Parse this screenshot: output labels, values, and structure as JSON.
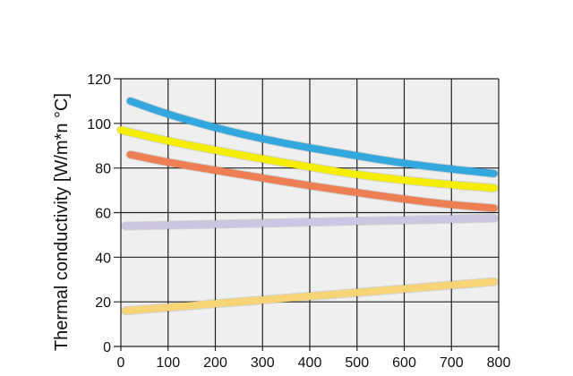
{
  "chart_data": {
    "type": "line",
    "title": "",
    "xlabel": "",
    "ylabel": "Thermal conductivity [W/m*n °C]",
    "xlim": [
      0,
      800
    ],
    "ylim": [
      0,
      120
    ],
    "xticks": [
      "0",
      "100",
      "200",
      "300",
      "400",
      "500",
      "600",
      "700",
      "800"
    ],
    "yticks": [
      "0",
      "20",
      "40",
      "60",
      "80",
      "100",
      "120"
    ],
    "grid": true,
    "background": "#efefef",
    "series": [
      {
        "color": "#33a8de",
        "x": [
          20,
          100,
          200,
          300,
          400,
          500,
          600,
          700,
          790
        ],
        "y": [
          110,
          104,
          98,
          93,
          89,
          85.5,
          82,
          79.5,
          77.5
        ]
      },
      {
        "color": "#f5ee00",
        "x": [
          0,
          100,
          200,
          300,
          400,
          500,
          600,
          700,
          790
        ],
        "y": [
          97,
          92,
          88,
          84,
          80.5,
          77,
          74.5,
          72.5,
          71
        ]
      },
      {
        "color": "#ee7f55",
        "x": [
          20,
          100,
          200,
          300,
          400,
          500,
          600,
          700,
          790
        ],
        "y": [
          86,
          82.5,
          79,
          75.5,
          72,
          69,
          66,
          63.5,
          62
        ]
      },
      {
        "color": "#cdc6e2",
        "x": [
          10,
          400,
          790
        ],
        "y": [
          54,
          55.7,
          57.5
        ]
      },
      {
        "color": "#f7d475",
        "x": [
          10,
          400,
          790
        ],
        "y": [
          16,
          22.5,
          29
        ]
      }
    ]
  }
}
